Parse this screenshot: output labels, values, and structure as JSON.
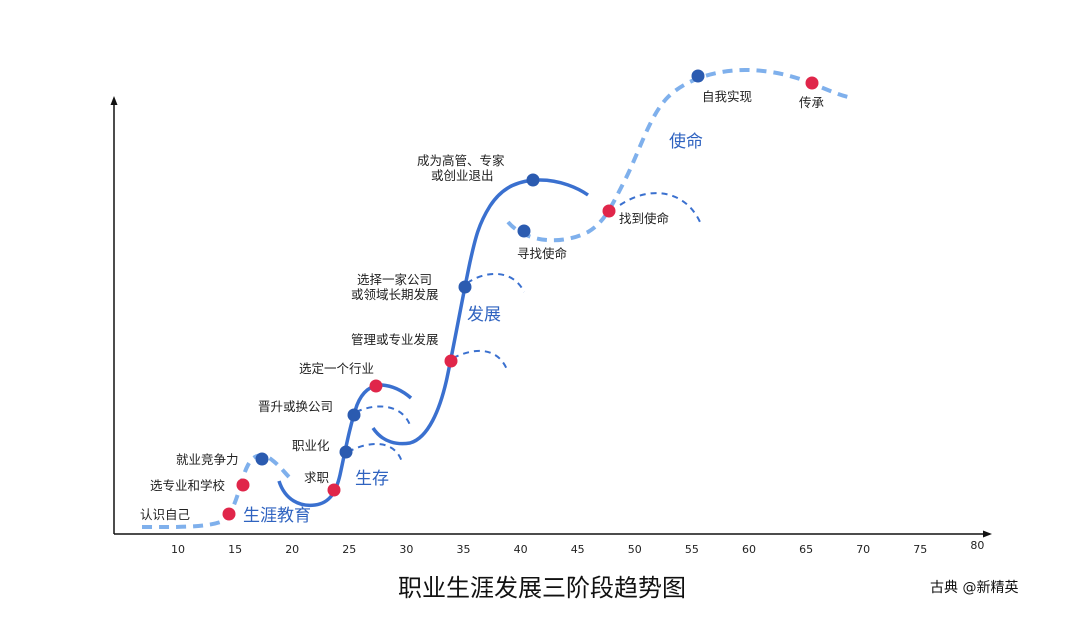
{
  "title": "职业生涯发展三阶段趋势图",
  "credit": "古典 @新精英",
  "colors": {
    "solid_line": "#3a70cf",
    "light_dashed": "#7fb0ec",
    "milestone_red": "#e0264a",
    "milestone_blue": "#2b5bb0",
    "phase_text": "#2f63c0"
  },
  "x_axis": {
    "ticks": [
      "10",
      "15",
      "20",
      "25",
      "30",
      "35",
      "40",
      "45",
      "50",
      "55",
      "60",
      "65",
      "70",
      "75",
      "80"
    ]
  },
  "phases": [
    "生涯教育",
    "生存",
    "发展",
    "使命"
  ],
  "milestones": [
    {
      "label": "认识自己",
      "color": "red"
    },
    {
      "label": "选专业和学校",
      "color": "red"
    },
    {
      "label": "就业竞争力",
      "color": "blue"
    },
    {
      "label": "求职",
      "color": "red"
    },
    {
      "label": "职业化",
      "color": "blue"
    },
    {
      "label": "晋升或换公司",
      "color": "blue"
    },
    {
      "label": "选定一个行业",
      "color": "red"
    },
    {
      "label": "管理或专业发展",
      "color": "red"
    },
    {
      "label_line1": "选择一家公司",
      "label_line2": "或领域长期发展",
      "color": "blue"
    },
    {
      "label_line1": "成为高管、专家",
      "label_line2": "或创业退出",
      "color": "blue"
    },
    {
      "label": "寻找使命",
      "color": "blue"
    },
    {
      "label": "找到使命",
      "color": "red"
    },
    {
      "label": "自我实现",
      "color": "blue"
    },
    {
      "label": "传承",
      "color": "red"
    }
  ]
}
